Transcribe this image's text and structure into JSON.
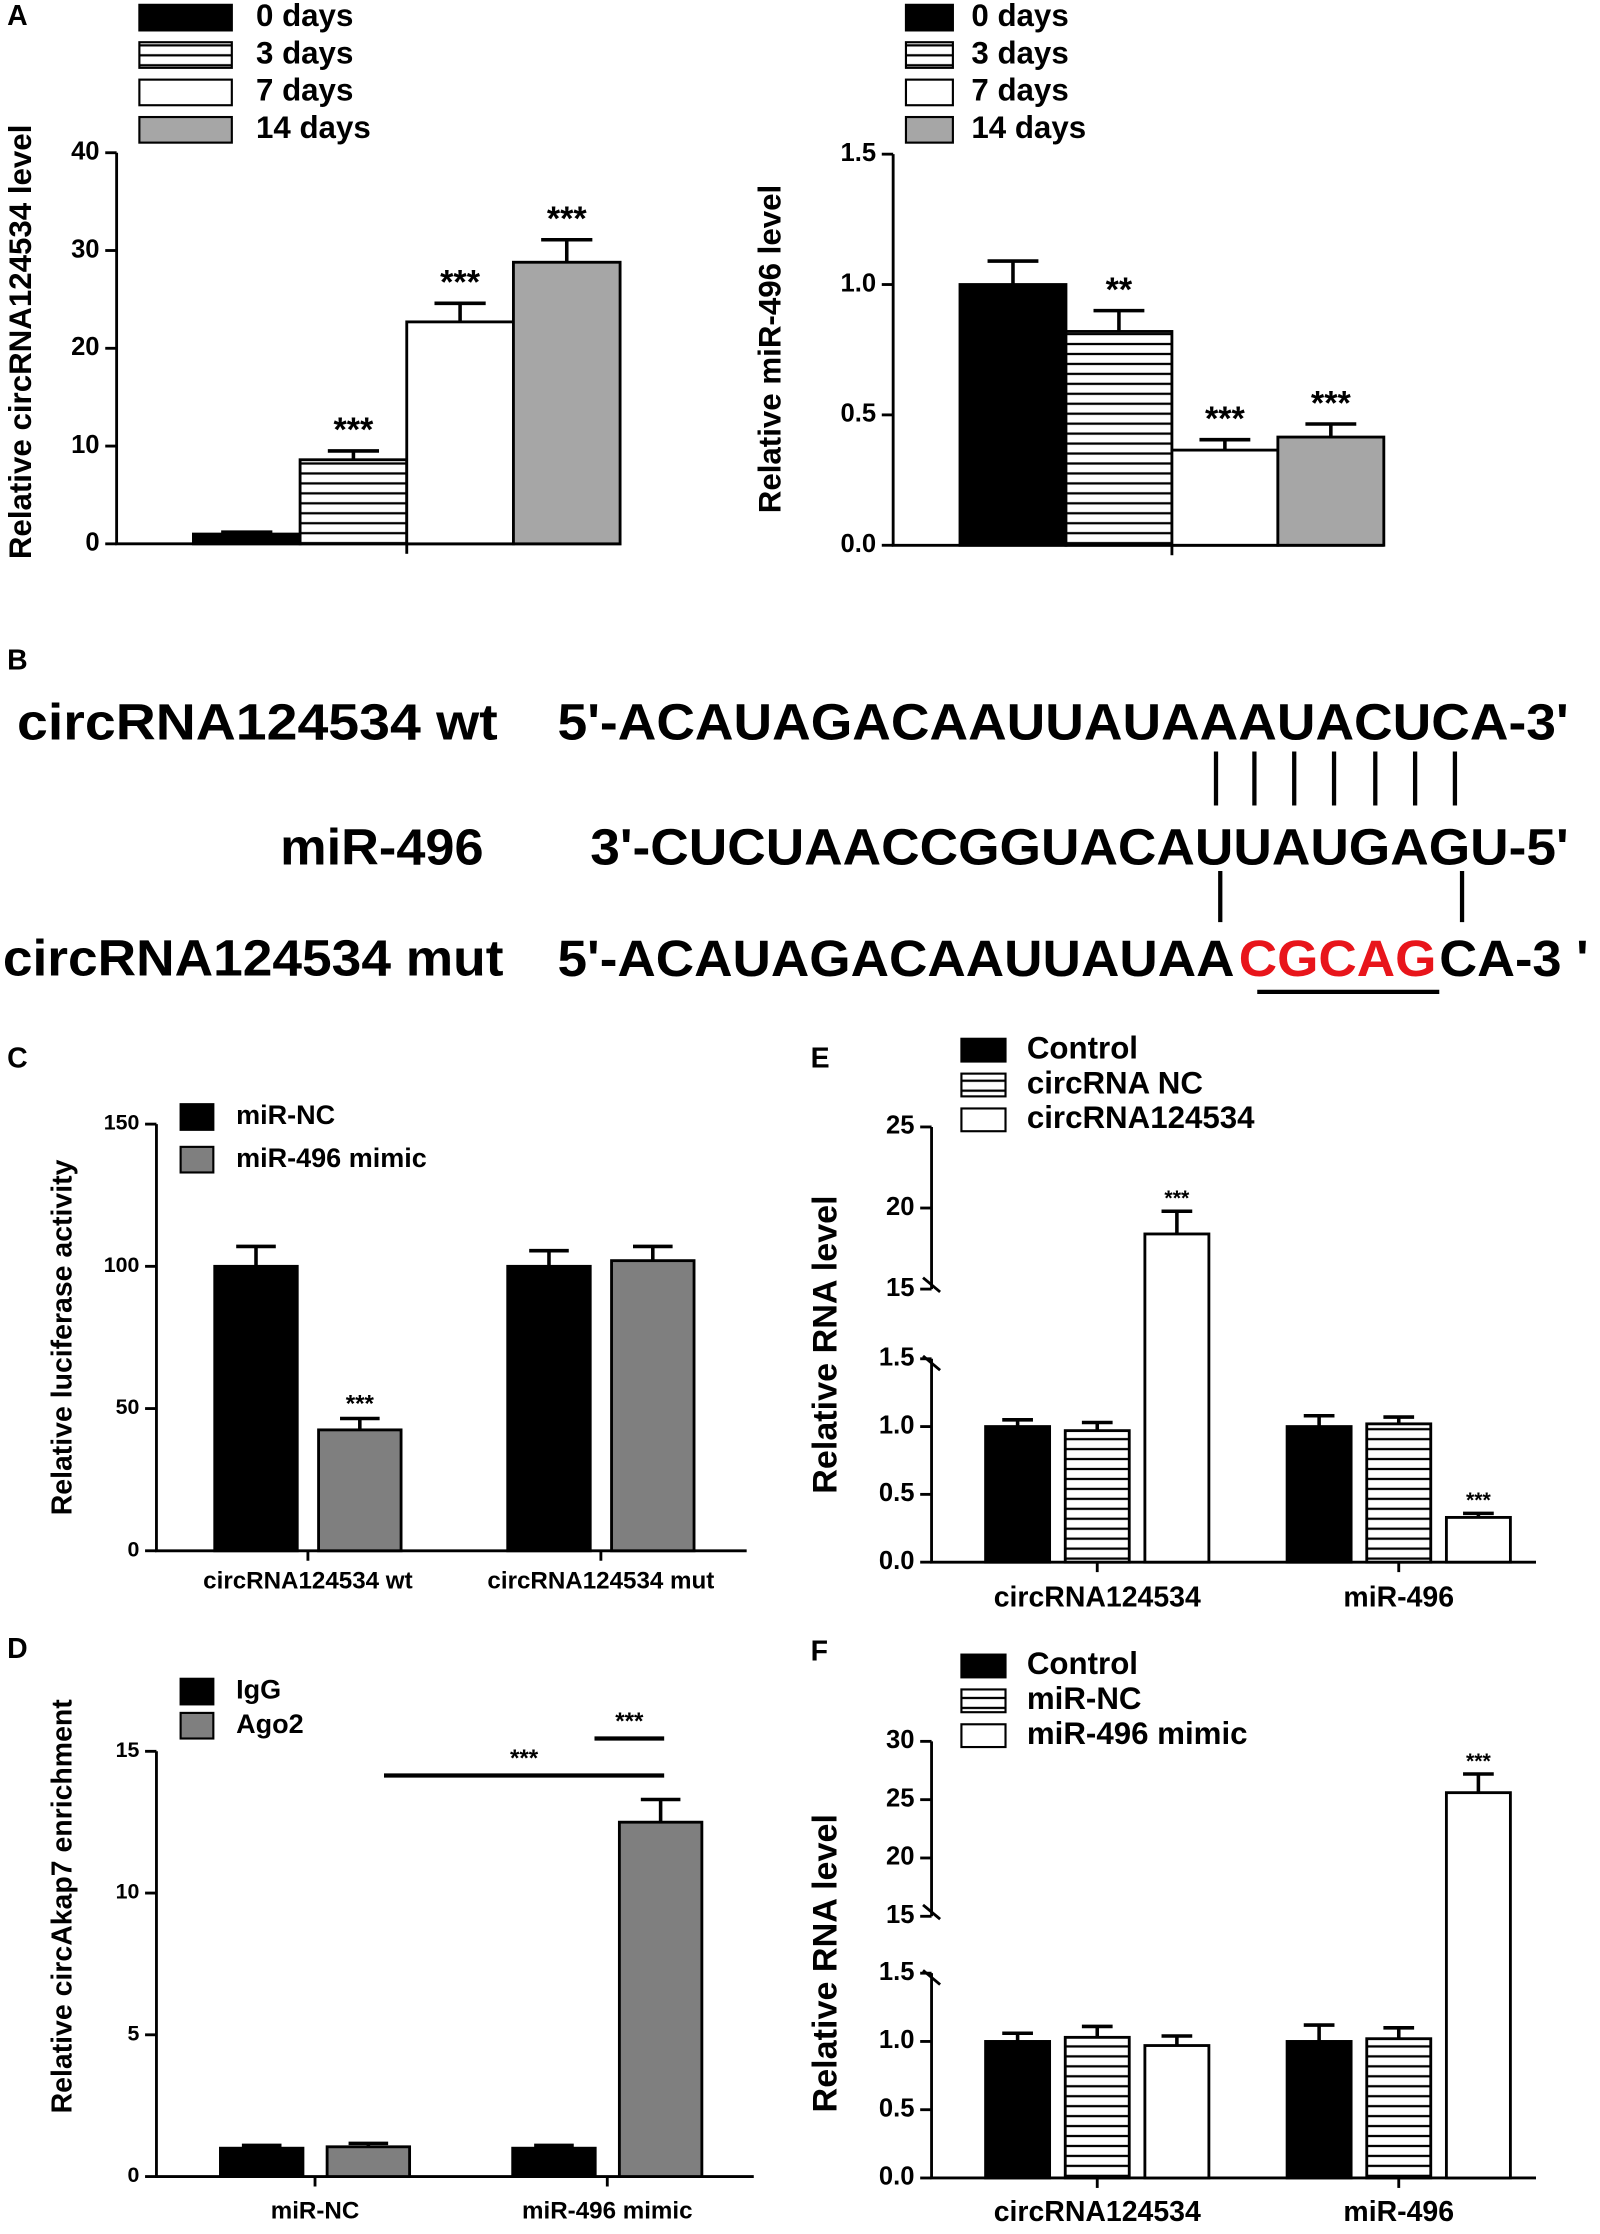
{
  "chart_data": [
    {
      "type": "bar",
      "panel_label": "A",
      "y_label": "Relative circRNA124534 level",
      "categories": [
        null
      ],
      "legend": "top-left",
      "series": [
        {
          "name": "0 days",
          "color": "#000000",
          "values": [
            1.0
          ],
          "errors": [
            0.2
          ]
        },
        {
          "name": "3 days",
          "color": "#ffffff",
          "pattern": "horizontal-lines",
          "values": [
            8.6
          ],
          "errors": [
            0.9
          ],
          "annotations": [
            "***"
          ]
        },
        {
          "name": "7 days",
          "color": "#ffffff",
          "values": [
            22.7
          ],
          "errors": [
            1.9
          ],
          "annotations": [
            "***"
          ]
        },
        {
          "name": "14 days",
          "color": "#a6a6a6",
          "values": [
            28.8
          ],
          "errors": [
            2.3
          ],
          "annotations": [
            "***"
          ]
        }
      ],
      "ylim": [
        0,
        40
      ],
      "yticks": [
        0,
        10,
        20,
        30,
        40
      ]
    },
    {
      "type": "bar",
      "y_label": "Relative miR-496 level",
      "categories": [
        null
      ],
      "legend": "top-left",
      "series": [
        {
          "name": "0 days",
          "color": "#000000",
          "values": [
            1.0
          ],
          "errors": [
            0.09
          ]
        },
        {
          "name": "3 days",
          "color": "#ffffff",
          "pattern": "horizontal-lines",
          "values": [
            0.82
          ],
          "errors": [
            0.08
          ],
          "annotations": [
            "**"
          ]
        },
        {
          "name": "7 days",
          "color": "#ffffff",
          "values": [
            0.365
          ],
          "errors": [
            0.04
          ],
          "annotations": [
            "***"
          ]
        },
        {
          "name": "14 days",
          "color": "#a6a6a6",
          "values": [
            0.415
          ],
          "errors": [
            0.05
          ],
          "annotations": [
            "***"
          ]
        }
      ],
      "ylim": [
        0,
        1.5
      ],
      "yticks": [
        {
          "value": 0,
          "label": "0.0"
        },
        0.5,
        {
          "value": 1,
          "label": "1.0"
        },
        1.5
      ]
    },
    {
      "type": "bar",
      "panel_label": "C",
      "y_label": "Relative luciferase activity",
      "categories": [
        "circRNA124534 wt",
        "circRNA124534 mut"
      ],
      "legend": "top-left",
      "series": [
        {
          "name": "miR-NC",
          "color": "#000000",
          "values": [
            100,
            100
          ],
          "errors": [
            7,
            5.5
          ]
        },
        {
          "name": "miR-496 mimic",
          "color": "#7f7f7f",
          "values": [
            42.5,
            102
          ],
          "errors": [
            4,
            5
          ],
          "annotations": [
            "***",
            null
          ]
        }
      ],
      "ylim": [
        0,
        150
      ],
      "yticks": [
        0,
        50,
        100,
        150
      ]
    },
    {
      "type": "bar",
      "panel_label": "D",
      "y_label": "Relative circAkap7 enrichment",
      "categories": [
        "miR-NC",
        "miR-496 mimic"
      ],
      "legend": "top-left",
      "series": [
        {
          "name": "IgG",
          "color": "#000000",
          "values": [
            1.0,
            1.0
          ],
          "errors": [
            0.1,
            0.1
          ]
        },
        {
          "name": "Ago2",
          "color": "#7f7f7f",
          "values": [
            1.05,
            12.5
          ],
          "errors": [
            0.12,
            0.8
          ]
        }
      ],
      "comparisons": [
        "***",
        "***"
      ],
      "ylim": [
        0,
        15
      ],
      "yticks": [
        0,
        5,
        10,
        15
      ]
    },
    {
      "type": "bar",
      "panel_label": "E",
      "y_label": "Relative RNA level",
      "categories": [
        "circRNA124534",
        "miR-496"
      ],
      "legend": "top-left",
      "series": [
        {
          "name": "Control",
          "color": "#000000",
          "values": [
            1.0,
            1.0
          ],
          "errors": [
            0.05,
            0.08
          ]
        },
        {
          "name": "circRNA NC",
          "color": "#ffffff",
          "pattern": "horizontal-lines",
          "values": [
            0.97,
            1.02
          ],
          "errors": [
            0.06,
            0.05
          ]
        },
        {
          "name": "circRNA124534",
          "color": "#ffffff",
          "values": [
            18.4,
            0.33
          ],
          "errors": [
            1.4,
            0.03
          ],
          "annotations": [
            "***",
            "***"
          ]
        }
      ],
      "axis_segments": [
        {
          "ylim": [
            0,
            1.5
          ],
          "yticks": [
            {
              "value": 0,
              "label": "0.0"
            },
            0.5,
            {
              "value": 1,
              "label": "1.0"
            },
            1.5
          ]
        },
        {
          "ylim": [
            15,
            25
          ],
          "yticks": [
            15,
            20,
            25
          ]
        }
      ]
    },
    {
      "type": "bar",
      "panel_label": "F",
      "y_label": "Relative RNA level",
      "categories": [
        "circRNA124534",
        "miR-496"
      ],
      "legend": "top-left",
      "series": [
        {
          "name": "Control",
          "color": "#000000",
          "values": [
            1.0,
            1.0
          ],
          "errors": [
            0.06,
            0.12
          ]
        },
        {
          "name": "miR-NC",
          "color": "#ffffff",
          "pattern": "horizontal-lines",
          "values": [
            1.03,
            1.02
          ],
          "errors": [
            0.08,
            0.08
          ]
        },
        {
          "name": "miR-496 mimic",
          "color": "#ffffff",
          "values": [
            0.97,
            25.6
          ],
          "errors": [
            0.07,
            1.6
          ],
          "annotations": [
            null,
            "***"
          ]
        }
      ],
      "axis_segments": [
        {
          "ylim": [
            0,
            1.5
          ],
          "yticks": [
            {
              "value": 0,
              "label": "0.0"
            },
            0.5,
            {
              "value": 1,
              "label": "1.0"
            },
            1.5
          ]
        },
        {
          "ylim": [
            15,
            30
          ],
          "yticks": [
            15,
            20,
            25,
            30
          ]
        }
      ]
    }
  ],
  "sequence_diagram": {
    "panel_label": "B",
    "rows": [
      {
        "label": "circRNA124534 wt",
        "sequence": "5'-ACAUAGACAAUUAUAAAUACUCA-3'"
      },
      {
        "label": "miR-496",
        "sequence": "3'-CUCUAACCGGUACAUUAUGAGU-5'"
      },
      {
        "label": "circRNA124534 mut",
        "sequence_parts": [
          "5'-ACAUAGACAAUUAUAA",
          "CGCAG",
          "CA-3 '"
        ]
      }
    ]
  }
}
